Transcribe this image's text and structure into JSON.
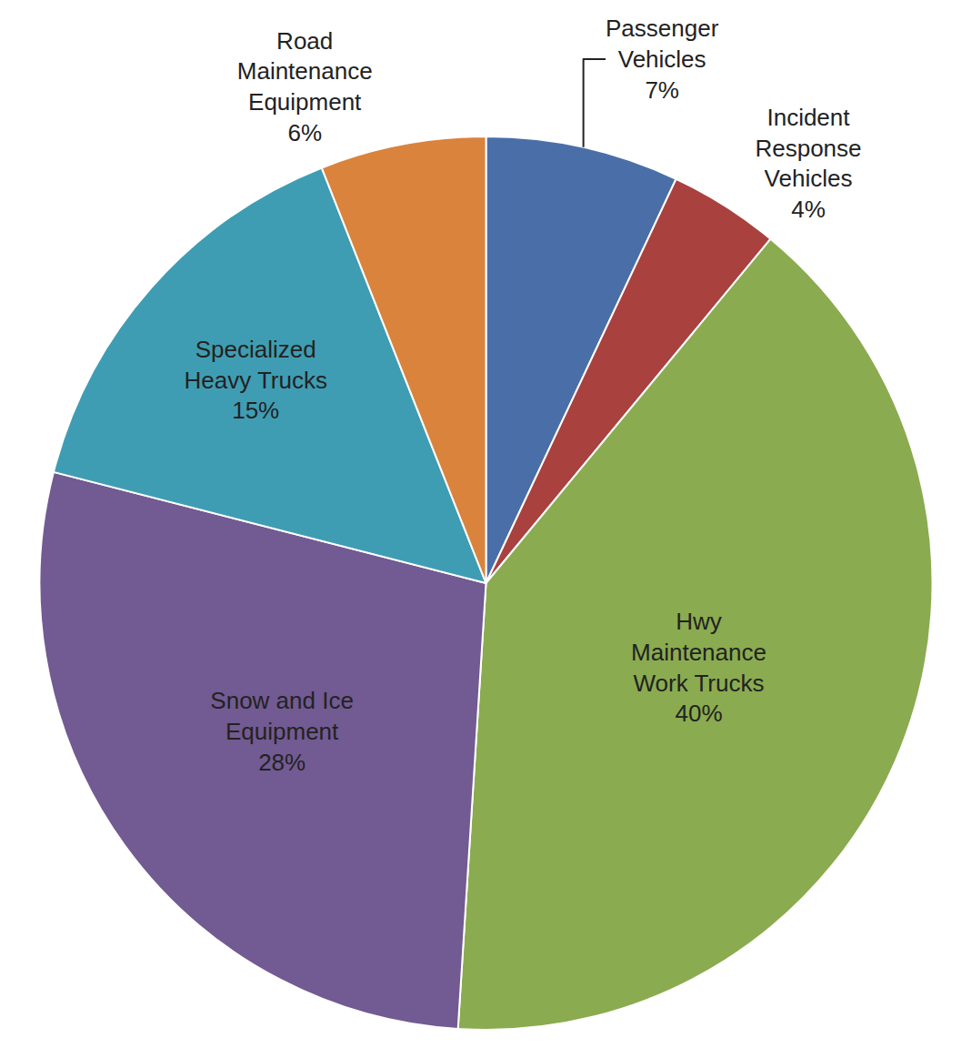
{
  "chart_data": {
    "type": "pie",
    "categories": [
      "Passenger Vehicles",
      "Incident Response Vehicles",
      "Hwy Maintenance Work Trucks",
      "Snow and Ice Equipment",
      "Specialized Heavy Trucks",
      "Road Maintenance Equipment"
    ],
    "values": [
      7,
      4,
      40,
      28,
      15,
      6
    ],
    "value_labels": [
      "7%",
      "4%",
      "40%",
      "28%",
      "15%",
      "6%"
    ],
    "colors": [
      "#4a6fa8",
      "#a9413f",
      "#8aab4f",
      "#725a92",
      "#3f9db3",
      "#d9833c"
    ],
    "data_labels": true
  }
}
